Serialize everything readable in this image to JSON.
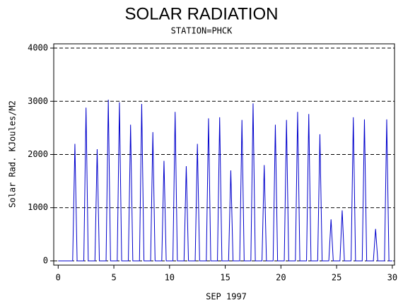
{
  "chart_data": {
    "type": "line",
    "title": "SOLAR RADIATION",
    "subtitle": "STATION=PHCK",
    "x_label": "SEP 1997",
    "y_label": "Solar Rad. KJoules/M2",
    "x": [
      0,
      1.3,
      1.5,
      1.7,
      2.3,
      2.5,
      2.7,
      3.3,
      3.5,
      3.7,
      4.3,
      4.5,
      4.7,
      5.3,
      5.5,
      5.7,
      6.3,
      6.5,
      6.7,
      7.3,
      7.5,
      7.7,
      8.3,
      8.5,
      8.7,
      9.3,
      9.5,
      9.7,
      10.3,
      10.5,
      10.7,
      11.3,
      11.5,
      11.7,
      12.3,
      12.5,
      12.7,
      13.3,
      13.5,
      13.7,
      14.3,
      14.5,
      14.7,
      15.3,
      15.5,
      15.7,
      16.3,
      16.5,
      16.7,
      17.3,
      17.5,
      17.7,
      18.3,
      18.5,
      18.7,
      19.3,
      19.5,
      19.7,
      20.3,
      20.5,
      20.7,
      21.3,
      21.5,
      21.7,
      22.3,
      22.5,
      22.7,
      23.3,
      23.5,
      23.7,
      24.3,
      24.5,
      24.7,
      25.3,
      25.5,
      25.7,
      26.3,
      26.5,
      26.7,
      27.3,
      27.5,
      27.7,
      28.3,
      28.5,
      28.7,
      29.3,
      29.5,
      29.7,
      30
    ],
    "series": [
      {
        "name": "Solar Rad.",
        "color": "#0000cc",
        "values": [
          0,
          0,
          2200,
          0,
          0,
          2880,
          0,
          0,
          2100,
          0,
          0,
          3030,
          0,
          0,
          2980,
          0,
          0,
          2560,
          0,
          0,
          2950,
          0,
          0,
          2420,
          0,
          0,
          1880,
          0,
          0,
          2800,
          0,
          0,
          1780,
          0,
          0,
          2200,
          0,
          0,
          2680,
          0,
          0,
          2700,
          0,
          0,
          1700,
          0,
          0,
          2650,
          0,
          0,
          2960,
          0,
          0,
          1800,
          0,
          0,
          2560,
          0,
          0,
          2650,
          0,
          0,
          2800,
          0,
          0,
          2760,
          0,
          0,
          2380,
          0,
          0,
          780,
          0,
          0,
          950,
          0,
          0,
          2700,
          0,
          0,
          2660,
          0,
          0,
          600,
          0,
          0,
          2660,
          0,
          0
        ]
      }
    ],
    "xlim": [
      -0.4,
      30.2
    ],
    "xticks": [
      0,
      5,
      10,
      15,
      20,
      25,
      30
    ],
    "ylim": [
      -80,
      4080
    ],
    "yticks": [
      0,
      1000,
      2000,
      3000,
      4000
    ],
    "grid": true
  }
}
